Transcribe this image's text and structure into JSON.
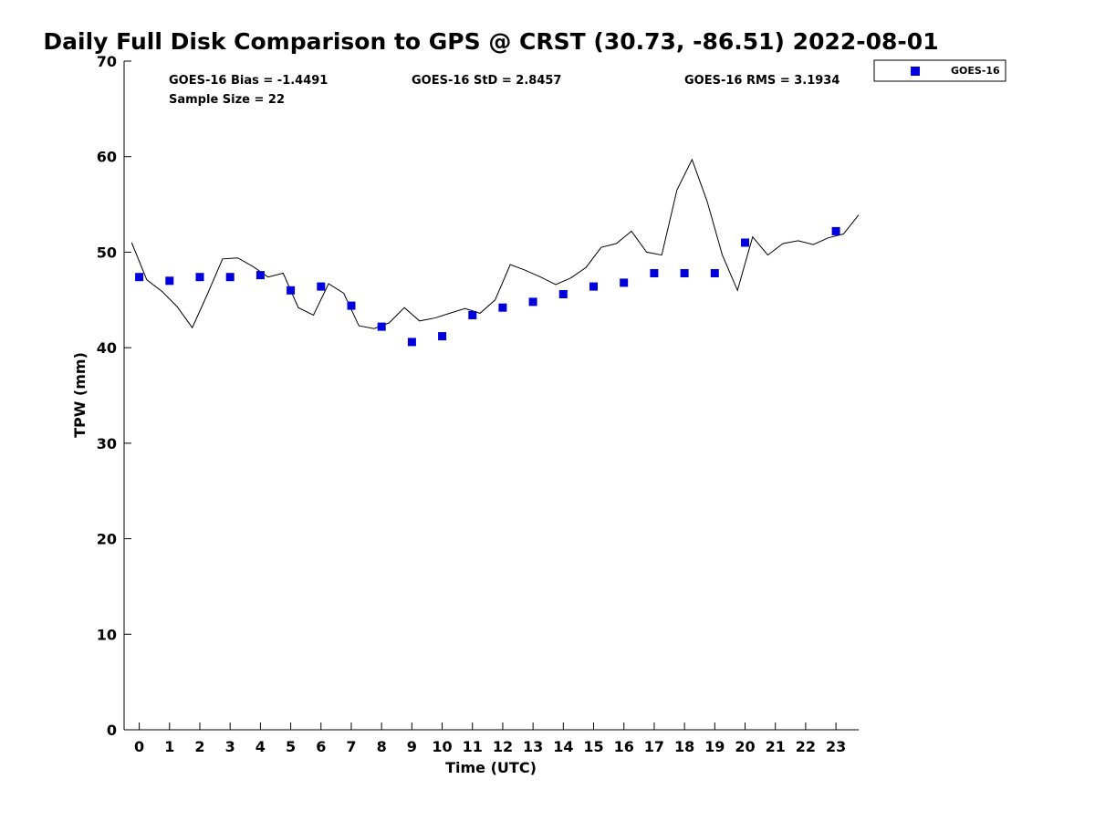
{
  "chart_data": {
    "type": "scatter",
    "title": "Daily Full Disk Comparison to GPS @ CRST (30.73, -86.51) 2022-08-01",
    "xlabel": "Time (UTC)",
    "ylabel": "TPW (mm)",
    "xlim": [
      -0.5,
      23.75
    ],
    "ylim": [
      0,
      70
    ],
    "x_ticks": [
      0,
      1,
      2,
      3,
      4,
      5,
      6,
      7,
      8,
      9,
      10,
      11,
      12,
      13,
      14,
      15,
      16,
      17,
      18,
      19,
      20,
      21,
      22,
      23
    ],
    "y_ticks": [
      0,
      10,
      20,
      30,
      40,
      50,
      60,
      70
    ],
    "grid": false,
    "legend": {
      "position": "top-right",
      "entries": [
        "GOES-16"
      ]
    },
    "stats": {
      "bias": "GOES-16 Bias = -1.4491",
      "std": "GOES-16 StD = 2.8457",
      "rms": "GOES-16 RMS = 3.1934",
      "sample_size": "Sample Size = 22"
    },
    "series": [
      {
        "name": "GOES-16",
        "kind": "scatter",
        "marker": "square",
        "color": "#0000dd",
        "x": [
          0,
          1,
          2,
          3,
          4,
          5,
          6,
          7,
          8,
          9,
          10,
          11,
          12,
          13,
          14,
          15,
          16,
          17,
          18,
          19,
          20,
          23
        ],
        "y": [
          47.4,
          47.0,
          47.4,
          47.4,
          47.6,
          46.0,
          46.4,
          44.4,
          42.2,
          40.6,
          41.2,
          43.4,
          44.2,
          44.8,
          45.6,
          46.4,
          46.8,
          47.8,
          47.8,
          47.8,
          51.0,
          52.2
        ]
      },
      {
        "name": "GPS",
        "kind": "line",
        "color": "#000000",
        "x": [
          -0.25,
          0.25,
          0.75,
          1.25,
          1.75,
          2.25,
          2.75,
          3.25,
          3.75,
          4.25,
          4.75,
          5.25,
          5.75,
          6.25,
          6.75,
          7.25,
          7.75,
          8.25,
          8.75,
          9.25,
          9.75,
          10.25,
          10.75,
          11.25,
          11.75,
          12.25,
          12.75,
          13.25,
          13.75,
          14.25,
          14.75,
          15.25,
          15.75,
          16.25,
          16.75,
          17.25,
          17.75,
          18.25,
          18.75,
          19.25,
          19.75,
          20.25,
          20.75,
          21.25,
          21.75,
          22.25,
          22.75,
          23.25,
          23.75
        ],
        "y": [
          51.0,
          47.1,
          45.9,
          44.3,
          42.1,
          45.6,
          49.3,
          49.4,
          48.5,
          47.4,
          47.8,
          44.2,
          43.4,
          46.7,
          45.7,
          42.3,
          42.0,
          42.6,
          44.2,
          42.8,
          43.1,
          43.6,
          44.1,
          43.6,
          45.0,
          48.7,
          48.1,
          47.4,
          46.6,
          47.3,
          48.4,
          50.5,
          50.9,
          52.2,
          50.0,
          49.7,
          56.5,
          59.7,
          55.3,
          49.7,
          46.0,
          51.6,
          49.7,
          50.9,
          51.2,
          50.8,
          51.5,
          51.9,
          53.9
        ]
      }
    ]
  }
}
